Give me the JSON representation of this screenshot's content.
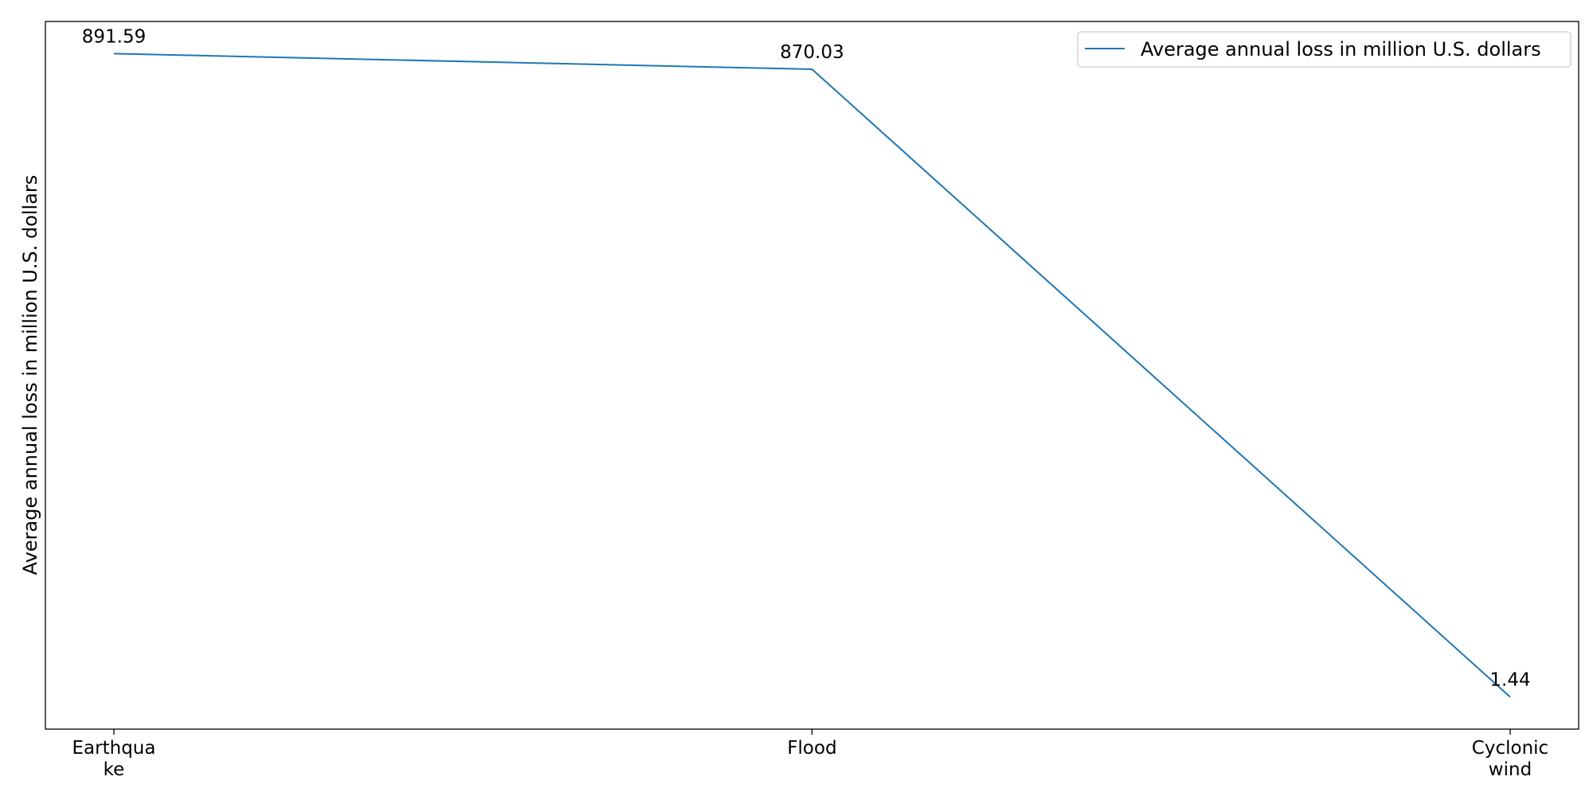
{
  "chart_data": {
    "type": "line",
    "categories": [
      "Earthquake",
      "Flood",
      "Cyclonic wind"
    ],
    "category_tick_lines": [
      [
        "Earthqua",
        "ke"
      ],
      [
        "Flood"
      ],
      [
        "Cyclonic",
        "wind"
      ]
    ],
    "series": [
      {
        "name": "Average annual loss in million U.S. dollars",
        "values": [
          891.59,
          870.03,
          1.44
        ],
        "labels": [
          "891.59",
          "870.03",
          "1.44"
        ],
        "color": "#1f77b4"
      }
    ],
    "title": "",
    "xlabel": "",
    "ylabel": "Average annual loss in million U.S. dollars",
    "ylim": [
      -43.07,
      936.1
    ],
    "yticks_visible": false,
    "grid": false,
    "legend_position": "top-right"
  }
}
